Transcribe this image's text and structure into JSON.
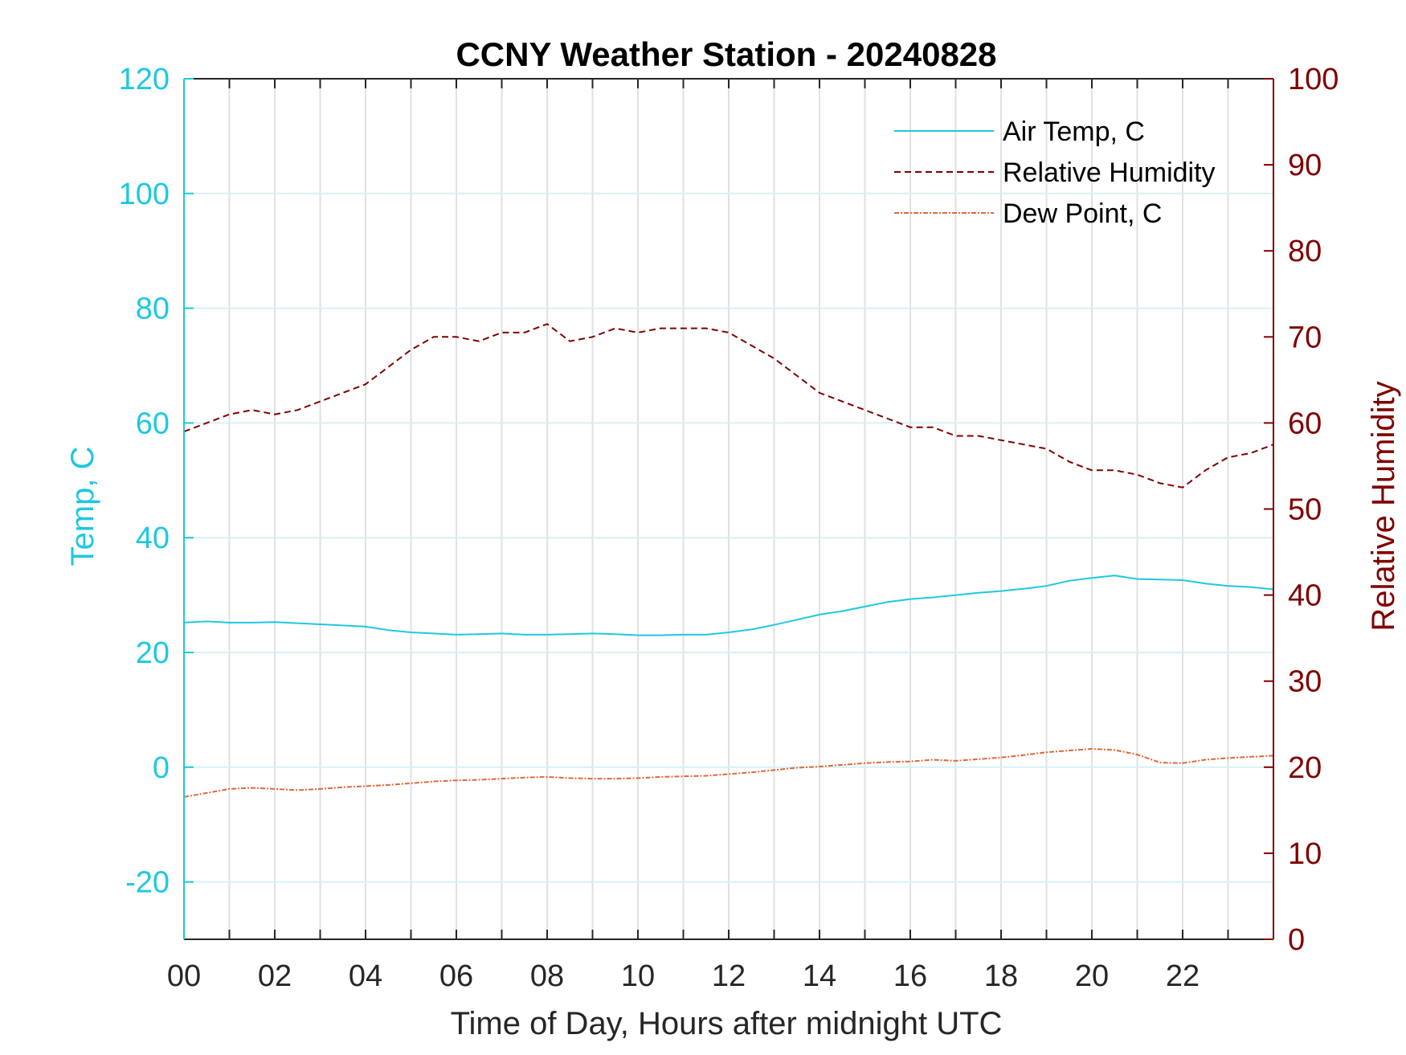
{
  "chart_data": {
    "type": "line",
    "title": "CCNY Weather Station - 20240828",
    "xlabel": "Time of Day, Hours after midnight UTC",
    "ylabel_left": "Temp, C",
    "ylabel_right": "Relative Humidity",
    "xlim": [
      0,
      24
    ],
    "ylim_left": [
      -30,
      120
    ],
    "ylim_right": [
      0,
      100
    ],
    "x_ticks": [
      0,
      2,
      4,
      6,
      8,
      10,
      12,
      14,
      16,
      18,
      20,
      22
    ],
    "x_tick_labels": [
      "00",
      "02",
      "04",
      "06",
      "08",
      "10",
      "12",
      "14",
      "16",
      "18",
      "20",
      "22"
    ],
    "y_left_ticks": [
      120,
      100,
      80,
      60,
      40,
      20,
      0,
      -20
    ],
    "y_left_tick_labels": [
      "120",
      "100",
      "80",
      "60",
      "40",
      "20",
      "0",
      "-20"
    ],
    "y_right_ticks": [
      100,
      90,
      80,
      70,
      60,
      50,
      40,
      30,
      20,
      10,
      0
    ],
    "y_right_tick_labels": [
      "100",
      "90",
      "80",
      "70",
      "60",
      "50",
      "40",
      "30",
      "20",
      "10",
      "0"
    ],
    "grid": true,
    "legend_position": "top-right",
    "colors": {
      "left_axis": "#1ec8e0",
      "right_axis": "#800000",
      "air_temp": "#1ec8e0",
      "humidity": "#800000",
      "dew_point": "#e0683a"
    },
    "series": [
      {
        "name": "Air Temp, C",
        "axis": "left",
        "style": "solid",
        "x": [
          0,
          0.5,
          1,
          1.5,
          2,
          2.5,
          3,
          3.5,
          4,
          4.5,
          5,
          5.5,
          6,
          6.5,
          7,
          7.5,
          8,
          8.5,
          9,
          9.5,
          10,
          10.5,
          11,
          11.5,
          12,
          12.5,
          13,
          13.5,
          14,
          14.5,
          15,
          15.5,
          16,
          16.5,
          17,
          17.5,
          18,
          18.5,
          19,
          19.5,
          20,
          20.5,
          21,
          21.5,
          22,
          22.5,
          23,
          23.5,
          24
        ],
        "values": [
          25.2,
          25.4,
          25.2,
          25.2,
          25.3,
          25.1,
          24.9,
          24.7,
          24.5,
          23.9,
          23.5,
          23.3,
          23.1,
          23.2,
          23.3,
          23.1,
          23.1,
          23.2,
          23.3,
          23.2,
          23.0,
          23.0,
          23.1,
          23.1,
          23.5,
          24.0,
          24.8,
          25.7,
          26.6,
          27.2,
          28.0,
          28.8,
          29.3,
          29.6,
          30.0,
          30.4,
          30.7,
          31.1,
          31.6,
          32.5,
          33.0,
          33.4,
          32.8,
          32.7,
          32.6,
          32.0,
          31.6,
          31.4,
          31.0
        ]
      },
      {
        "name": "Relative Humidity",
        "axis": "right",
        "style": "dashed",
        "x": [
          0,
          0.5,
          1,
          1.5,
          2,
          2.5,
          3,
          3.5,
          4,
          4.5,
          5,
          5.5,
          6,
          6.5,
          7,
          7.5,
          8,
          8.5,
          9,
          9.5,
          10,
          10.5,
          11,
          11.5,
          12,
          12.5,
          13,
          13.5,
          14,
          14.5,
          15,
          15.5,
          16,
          16.5,
          17,
          17.5,
          18,
          18.5,
          19,
          19.5,
          20,
          20.5,
          21,
          21.5,
          22,
          22.5,
          23,
          23.5,
          24
        ],
        "values": [
          59,
          60,
          61,
          61.5,
          61,
          61.5,
          62.5,
          63.5,
          64.5,
          66.5,
          68.5,
          70,
          70,
          69.5,
          70.5,
          70.5,
          71.5,
          69.5,
          70,
          71,
          70.5,
          71,
          71,
          71,
          70.5,
          69,
          67.5,
          65.5,
          63.5,
          62.5,
          61.5,
          60.5,
          59.5,
          59.5,
          58.5,
          58.5,
          58,
          57.5,
          57,
          55.5,
          54.5,
          54.5,
          54,
          53,
          52.5,
          54.5,
          56,
          56.5,
          57.5
        ]
      },
      {
        "name": "Dew Point, C",
        "axis": "left",
        "style": "dash-dot",
        "x": [
          0,
          0.5,
          1,
          1.5,
          2,
          2.5,
          3,
          3.5,
          4,
          4.5,
          5,
          5.5,
          6,
          6.5,
          7,
          7.5,
          8,
          8.5,
          9,
          9.5,
          10,
          10.5,
          11,
          11.5,
          12,
          12.5,
          13,
          13.5,
          14,
          14.5,
          15,
          15.5,
          16,
          16.5,
          17,
          17.5,
          18,
          18.5,
          19,
          19.5,
          20,
          20.5,
          21,
          21.5,
          22,
          22.5,
          23,
          23.5,
          24
        ],
        "values": [
          -5.2,
          -4.5,
          -3.8,
          -3.6,
          -3.8,
          -4.0,
          -3.8,
          -3.5,
          -3.3,
          -3.1,
          -2.8,
          -2.5,
          -2.3,
          -2.2,
          -2.0,
          -1.8,
          -1.7,
          -1.9,
          -2.0,
          -2.0,
          -1.9,
          -1.7,
          -1.6,
          -1.5,
          -1.2,
          -0.9,
          -0.5,
          -0.1,
          0.1,
          0.4,
          0.7,
          0.9,
          1.0,
          1.3,
          1.1,
          1.4,
          1.7,
          2.1,
          2.6,
          2.9,
          3.2,
          3.0,
          2.2,
          0.8,
          0.7,
          1.3,
          1.6,
          1.8,
          2.0
        ]
      }
    ]
  }
}
